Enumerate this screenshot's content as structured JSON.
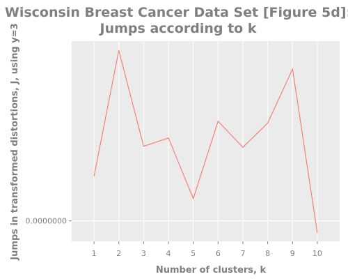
{
  "chart_data": {
    "type": "line",
    "title": [
      "Wisconsin Breast Cancer Data Set [Figure 5d]:",
      "Jumps according to k"
    ],
    "xlabel": "Number of clusters, k",
    "ylabel": "Jumps in transformed distortions, J, using y=3",
    "x": [
      1,
      2,
      3,
      4,
      5,
      6,
      7,
      8,
      9,
      10
    ],
    "xlim": [
      0.1,
      10.9
    ],
    "x_tick_labels": [
      "1",
      "2",
      "3",
      "4",
      "5",
      "6",
      "7",
      "8",
      "9",
      "10"
    ],
    "y_tick_values": [
      0
    ],
    "y_tick_labels": [
      "0.0000000"
    ],
    "ylim": [
      -2.2e-06,
      1.93e-05
    ],
    "grid": true,
    "background": "#ebebeb",
    "gridline_color": "#ffffff",
    "series": [
      {
        "color": "#f8766d",
        "values": [
          4.8e-06,
          1.83e-05,
          8e-06,
          8.9e-06,
          2.4e-06,
          1.07e-05,
          7.9e-06,
          1.05e-05,
          1.63e-05,
          -1.3e-06
        ]
      }
    ]
  }
}
